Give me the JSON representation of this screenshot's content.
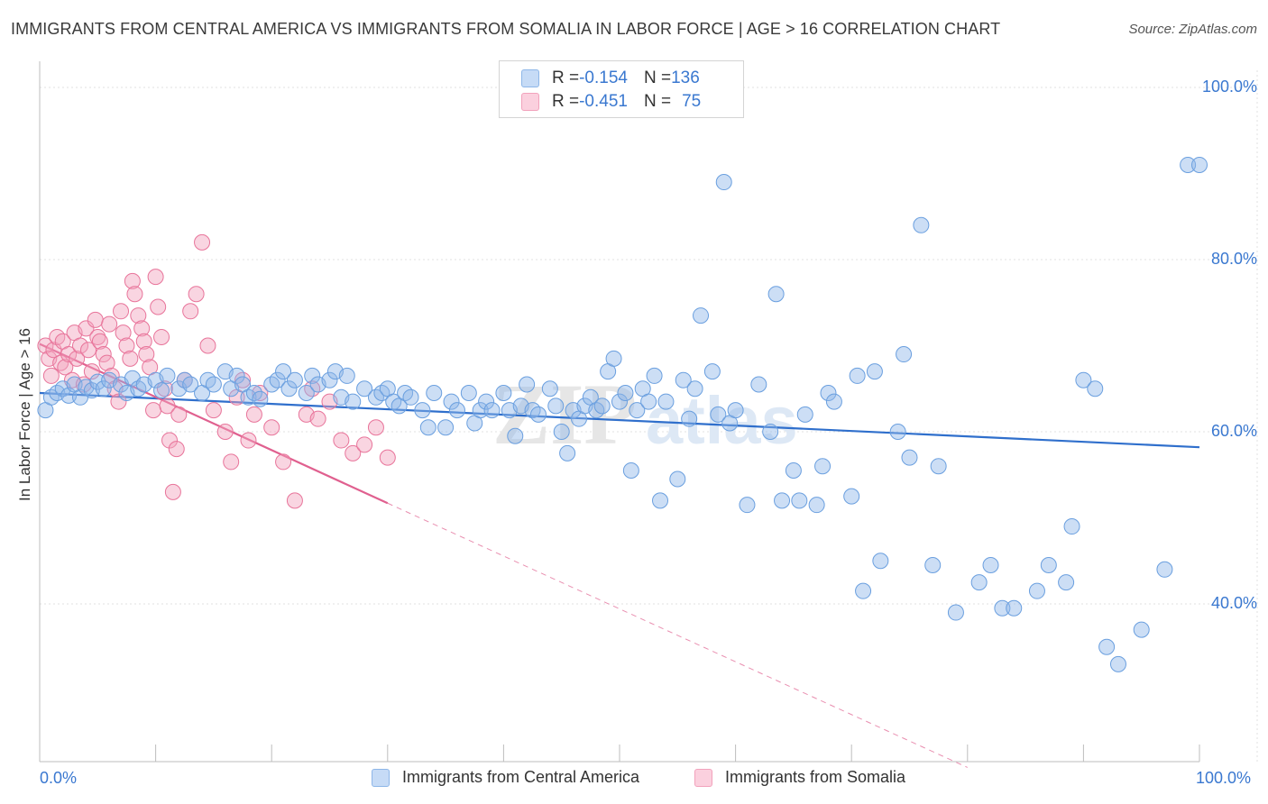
{
  "title": "IMMIGRANTS FROM CENTRAL AMERICA VS IMMIGRANTS FROM SOMALIA IN LABOR FORCE | AGE > 16 CORRELATION CHART",
  "source": "Source: ZipAtlas.com",
  "watermark_zip": "ZIP",
  "watermark_atlas": "atlas",
  "legend": {
    "r_label": "R = ",
    "n_label": "N = ",
    "rows": [
      {
        "r": "-0.154",
        "n": "136",
        "color": "#8db6e8"
      },
      {
        "r": "-0.451",
        "n": "75",
        "color": "#f2a2bc"
      }
    ]
  },
  "chart_data": {
    "type": "scatter",
    "title": "IMMIGRANTS FROM CENTRAL AMERICA VS IMMIGRANTS FROM SOMALIA IN LABOR FORCE | AGE > 16 CORRELATION CHART",
    "xlabel": "",
    "ylabel": "In Labor Force | Age > 16",
    "xlim": [
      0,
      100
    ],
    "ylim": [
      20,
      100
    ],
    "x_tick_labels": [
      "0.0%",
      "100.0%"
    ],
    "y_ticks": [
      {
        "value": 100,
        "label": "100.0%"
      },
      {
        "value": 80,
        "label": "80.0%"
      },
      {
        "value": 60,
        "label": "60.0%"
      },
      {
        "value": 40,
        "label": "40.0%"
      }
    ],
    "series": [
      {
        "name": "Immigrants from Central America",
        "color": "#8db6e8",
        "edge": "#6a9fdf",
        "trend": {
          "x0": 0,
          "y0": 64.5,
          "x1": 100,
          "y1": 58.2,
          "color": "#2f6fcc"
        },
        "points": [
          [
            0.5,
            62.5
          ],
          [
            1,
            64.0
          ],
          [
            1.5,
            64.5
          ],
          [
            2,
            65.0
          ],
          [
            2.5,
            64.2
          ],
          [
            3,
            65.5
          ],
          [
            3.5,
            64.0
          ],
          [
            4,
            65.2
          ],
          [
            4.5,
            64.8
          ],
          [
            5,
            65.8
          ],
          [
            5.5,
            65.0
          ],
          [
            6,
            66.0
          ],
          [
            7,
            65.5
          ],
          [
            7.5,
            64.5
          ],
          [
            8,
            66.2
          ],
          [
            8.5,
            65.0
          ],
          [
            9,
            65.5
          ],
          [
            10,
            66.0
          ],
          [
            10.5,
            64.8
          ],
          [
            11,
            66.5
          ],
          [
            12,
            65.0
          ],
          [
            12.5,
            66.0
          ],
          [
            13,
            65.5
          ],
          [
            14,
            64.5
          ],
          [
            14.5,
            66.0
          ],
          [
            15,
            65.5
          ],
          [
            16,
            67.0
          ],
          [
            16.5,
            65.0
          ],
          [
            17,
            66.5
          ],
          [
            17.5,
            65.5
          ],
          [
            18,
            64.0
          ],
          [
            18.5,
            64.5
          ],
          [
            19,
            63.8
          ],
          [
            20,
            65.5
          ],
          [
            20.5,
            66.0
          ],
          [
            21,
            67.0
          ],
          [
            21.5,
            65.0
          ],
          [
            22,
            66.0
          ],
          [
            23,
            64.5
          ],
          [
            23.5,
            66.5
          ],
          [
            24,
            65.5
          ],
          [
            25,
            66.0
          ],
          [
            25.5,
            67.0
          ],
          [
            26,
            64.0
          ],
          [
            26.5,
            66.5
          ],
          [
            27,
            63.5
          ],
          [
            28,
            65.0
          ],
          [
            29,
            64.0
          ],
          [
            29.5,
            64.5
          ],
          [
            30,
            65.0
          ],
          [
            30.5,
            63.5
          ],
          [
            31,
            63.0
          ],
          [
            31.5,
            64.5
          ],
          [
            32,
            64.0
          ],
          [
            33,
            62.5
          ],
          [
            33.5,
            60.5
          ],
          [
            34,
            64.5
          ],
          [
            35,
            60.5
          ],
          [
            35.5,
            63.5
          ],
          [
            36,
            62.5
          ],
          [
            37,
            64.5
          ],
          [
            37.5,
            61.0
          ],
          [
            38,
            62.5
          ],
          [
            38.5,
            63.5
          ],
          [
            39,
            62.5
          ],
          [
            40,
            64.5
          ],
          [
            40.5,
            62.5
          ],
          [
            41,
            59.5
          ],
          [
            41.5,
            63.0
          ],
          [
            42,
            65.5
          ],
          [
            42.5,
            62.5
          ],
          [
            43,
            62.0
          ],
          [
            44,
            65.0
          ],
          [
            44.5,
            63.0
          ],
          [
            45,
            60.0
          ],
          [
            45.5,
            57.5
          ],
          [
            46,
            62.5
          ],
          [
            46.5,
            61.5
          ],
          [
            47,
            63.0
          ],
          [
            47.5,
            64.0
          ],
          [
            48,
            62.5
          ],
          [
            48.5,
            63.0
          ],
          [
            49,
            67.0
          ],
          [
            49.5,
            68.5
          ],
          [
            50,
            63.5
          ],
          [
            50.5,
            64.5
          ],
          [
            51,
            55.5
          ],
          [
            51.5,
            62.5
          ],
          [
            52,
            65.0
          ],
          [
            52.5,
            63.5
          ],
          [
            53,
            66.5
          ],
          [
            53.5,
            52.0
          ],
          [
            54,
            63.5
          ],
          [
            55,
            54.5
          ],
          [
            55.5,
            66.0
          ],
          [
            56,
            61.5
          ],
          [
            56.5,
            65.0
          ],
          [
            57,
            73.5
          ],
          [
            58,
            67.0
          ],
          [
            58.5,
            62.0
          ],
          [
            59,
            89.0
          ],
          [
            59.5,
            61.0
          ],
          [
            60,
            62.5
          ],
          [
            61,
            51.5
          ],
          [
            62,
            65.5
          ],
          [
            63,
            60.0
          ],
          [
            63.5,
            76.0
          ],
          [
            64,
            52.0
          ],
          [
            65,
            55.5
          ],
          [
            65.5,
            52.0
          ],
          [
            66,
            62.0
          ],
          [
            67,
            51.5
          ],
          [
            67.5,
            56.0
          ],
          [
            68,
            64.5
          ],
          [
            68.5,
            63.5
          ],
          [
            70,
            52.5
          ],
          [
            70.5,
            66.5
          ],
          [
            71,
            41.5
          ],
          [
            72,
            67.0
          ],
          [
            72.5,
            45.0
          ],
          [
            74,
            60.0
          ],
          [
            74.5,
            69.0
          ],
          [
            75,
            57.0
          ],
          [
            76,
            84.0
          ],
          [
            77,
            44.5
          ],
          [
            77.5,
            56.0
          ],
          [
            79,
            39.0
          ],
          [
            81,
            42.5
          ],
          [
            82,
            44.5
          ],
          [
            83,
            39.5
          ],
          [
            84,
            39.5
          ],
          [
            86,
            41.5
          ],
          [
            87,
            44.5
          ],
          [
            88.5,
            42.5
          ],
          [
            89,
            49.0
          ],
          [
            90,
            66.0
          ],
          [
            91,
            65.0
          ],
          [
            92,
            35.0
          ],
          [
            93,
            33.0
          ],
          [
            95,
            37.0
          ],
          [
            97,
            44.0
          ],
          [
            99,
            91.0
          ],
          [
            100,
            91.0
          ]
        ]
      },
      {
        "name": "Immigrants from Somalia",
        "color": "#f2a2bc",
        "edge": "#e8749a",
        "trend": {
          "x0": 0,
          "y0": 70.2,
          "x1": 30,
          "y1": 51.7,
          "color": "#e0608f"
        },
        "trend_extension": {
          "x0": 30,
          "y0": 51.7,
          "x1": 80,
          "y1": 21.0
        },
        "points": [
          [
            0.5,
            70.0
          ],
          [
            0.8,
            68.5
          ],
          [
            1,
            66.5
          ],
          [
            1.2,
            69.5
          ],
          [
            1.5,
            71.0
          ],
          [
            1.8,
            68.0
          ],
          [
            2,
            70.5
          ],
          [
            2.2,
            67.5
          ],
          [
            2.5,
            69.0
          ],
          [
            2.8,
            66.0
          ],
          [
            3,
            71.5
          ],
          [
            3.2,
            68.5
          ],
          [
            3.5,
            70.0
          ],
          [
            3.8,
            65.5
          ],
          [
            4,
            72.0
          ],
          [
            4.2,
            69.5
          ],
          [
            4.5,
            67.0
          ],
          [
            4.8,
            73.0
          ],
          [
            5,
            71.0
          ],
          [
            5.2,
            70.5
          ],
          [
            5.5,
            69.0
          ],
          [
            5.8,
            68.0
          ],
          [
            6,
            72.5
          ],
          [
            6.2,
            66.5
          ],
          [
            6.5,
            65.0
          ],
          [
            6.8,
            63.5
          ],
          [
            7,
            74.0
          ],
          [
            7.2,
            71.5
          ],
          [
            7.5,
            70.0
          ],
          [
            7.8,
            68.5
          ],
          [
            8,
            77.5
          ],
          [
            8.2,
            76.0
          ],
          [
            8.5,
            73.5
          ],
          [
            8.8,
            72.0
          ],
          [
            9,
            70.5
          ],
          [
            9.2,
            69.0
          ],
          [
            9.5,
            67.5
          ],
          [
            9.8,
            62.5
          ],
          [
            10,
            78.0
          ],
          [
            10.2,
            74.5
          ],
          [
            10.5,
            71.0
          ],
          [
            10.8,
            65.0
          ],
          [
            11,
            63.0
          ],
          [
            11.2,
            59.0
          ],
          [
            11.5,
            53.0
          ],
          [
            11.8,
            58.0
          ],
          [
            12,
            62.0
          ],
          [
            12.5,
            66.0
          ],
          [
            13,
            74.0
          ],
          [
            13.5,
            76.0
          ],
          [
            14,
            82.0
          ],
          [
            14.5,
            70.0
          ],
          [
            15,
            62.5
          ],
          [
            16,
            60.0
          ],
          [
            16.5,
            56.5
          ],
          [
            17,
            64.0
          ],
          [
            17.5,
            66.0
          ],
          [
            18,
            59.0
          ],
          [
            18.5,
            62.0
          ],
          [
            19,
            64.5
          ],
          [
            20,
            60.5
          ],
          [
            21,
            56.5
          ],
          [
            22,
            52.0
          ],
          [
            23,
            62.0
          ],
          [
            23.5,
            65.0
          ],
          [
            24,
            61.5
          ],
          [
            25,
            63.5
          ],
          [
            26,
            59.0
          ],
          [
            27,
            57.5
          ],
          [
            28,
            58.5
          ],
          [
            29,
            60.5
          ],
          [
            30,
            57.0
          ]
        ]
      }
    ]
  }
}
